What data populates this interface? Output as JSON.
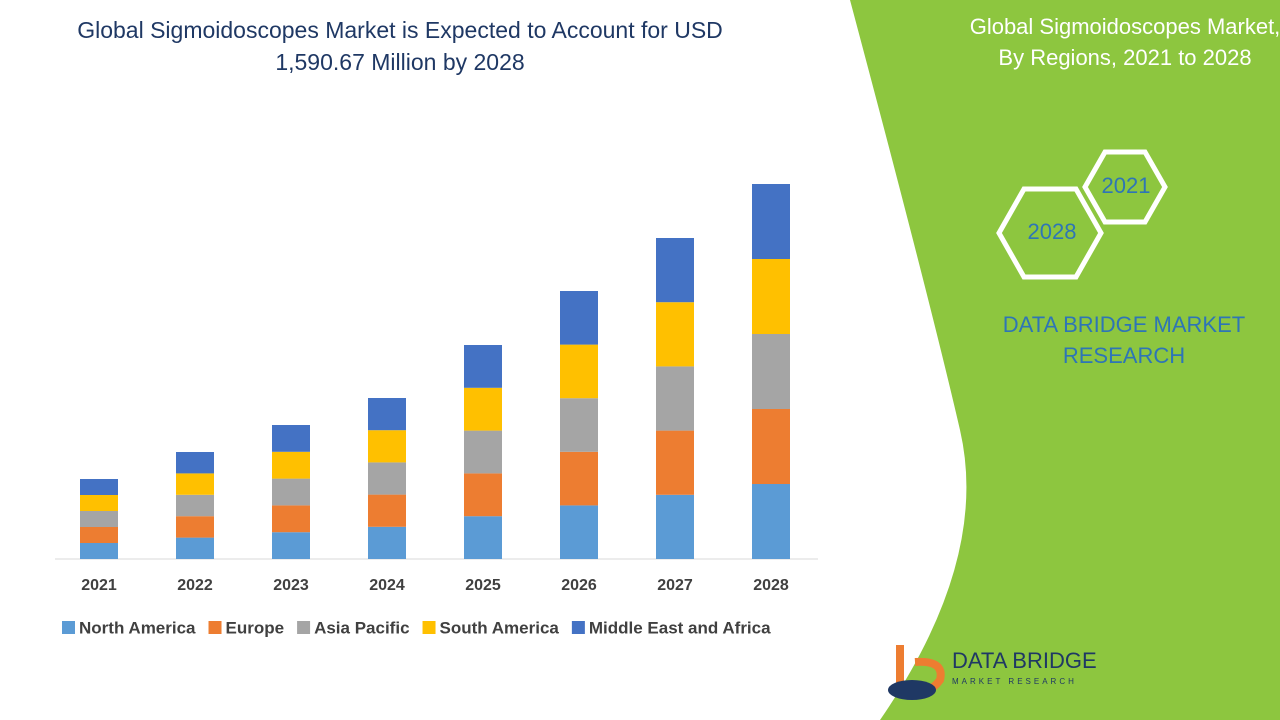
{
  "chart_data": {
    "type": "stacked_bar",
    "title": "Global Sigmoidoscopes Market is Expected to Account for USD 1,590.67 Million by 2028",
    "categories": [
      "2021",
      "2022",
      "2023",
      "2024",
      "2025",
      "2026",
      "2027",
      "2028"
    ],
    "series": [
      {
        "name": "North America",
        "color": "#5b9bd5",
        "values": [
          16,
          21.4,
          26.8,
          32.2,
          42.8,
          53.6,
          64.2,
          75
        ]
      },
      {
        "name": "Europe",
        "color": "#ed7d31",
        "values": [
          16,
          21.4,
          26.8,
          32.2,
          42.8,
          53.6,
          64.2,
          75
        ]
      },
      {
        "name": "Asia Pacific",
        "color": "#a5a5a5",
        "values": [
          16,
          21.4,
          26.8,
          32.2,
          42.8,
          53.6,
          64.2,
          75
        ]
      },
      {
        "name": "South America",
        "color": "#ffc000",
        "values": [
          16,
          21.4,
          26.8,
          32.2,
          42.8,
          53.6,
          64.2,
          75
        ]
      },
      {
        "name": "Middle East and Africa",
        "color": "#4472c4",
        "values": [
          16,
          21.4,
          26.8,
          32.2,
          42.8,
          53.6,
          64.2,
          75
        ]
      }
    ],
    "ylim": [
      0,
      400
    ],
    "legend": "bottom"
  },
  "panel": {
    "title_line1": "Global Sigmoidoscopes Market,",
    "title_line2": "By Regions, 2021 to 2028",
    "hex_start": "2021",
    "hex_end": "2028",
    "brand_line1": "DATA BRIDGE MARKET",
    "brand_line2": "RESEARCH"
  },
  "logo": {
    "name": "DATA BRIDGE",
    "tagline": "MARKET RESEARCH"
  }
}
